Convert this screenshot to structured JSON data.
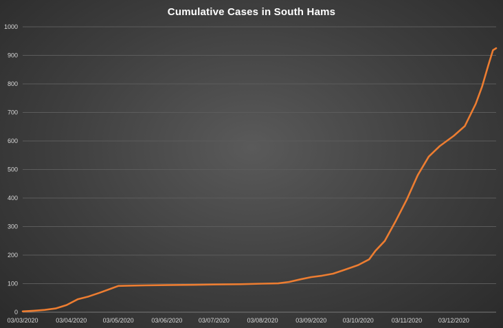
{
  "chart_data": {
    "type": "line",
    "title": "Cumulative Cases in South Hams",
    "xlabel": "",
    "ylabel": "",
    "ylim": [
      0,
      1000
    ],
    "yticks": [
      0,
      100,
      200,
      300,
      400,
      500,
      600,
      700,
      800,
      900,
      1000
    ],
    "xlim": [
      "2020-03-03",
      "2020-12-30"
    ],
    "x_tick_labels": [
      "03/03/2020",
      "03/04/2020",
      "03/05/2020",
      "03/06/2020",
      "03/07/2020",
      "03/08/2020",
      "03/09/2020",
      "03/10/2020",
      "03/11/2020",
      "03/12/2020"
    ],
    "x_tick_dates": [
      "2020-03-03",
      "2020-04-03",
      "2020-05-03",
      "2020-06-03",
      "2020-07-03",
      "2020-08-03",
      "2020-09-03",
      "2020-10-03",
      "2020-11-03",
      "2020-12-03"
    ],
    "grid": true,
    "series": [
      {
        "color": "#ED7D31",
        "points": [
          [
            "2020-03-03",
            3
          ],
          [
            "2020-03-10",
            5
          ],
          [
            "2020-03-17",
            8
          ],
          [
            "2020-03-24",
            13
          ],
          [
            "2020-03-31",
            25
          ],
          [
            "2020-04-07",
            45
          ],
          [
            "2020-04-14",
            55
          ],
          [
            "2020-04-21",
            68
          ],
          [
            "2020-04-28",
            82
          ],
          [
            "2020-05-03",
            92
          ],
          [
            "2020-05-10",
            93
          ],
          [
            "2020-05-20",
            94
          ],
          [
            "2020-06-03",
            95
          ],
          [
            "2020-06-20",
            96
          ],
          [
            "2020-07-03",
            97
          ],
          [
            "2020-07-20",
            98
          ],
          [
            "2020-08-03",
            100
          ],
          [
            "2020-08-13",
            101
          ],
          [
            "2020-08-20",
            106
          ],
          [
            "2020-08-27",
            115
          ],
          [
            "2020-09-03",
            123
          ],
          [
            "2020-09-10",
            128
          ],
          [
            "2020-09-17",
            135
          ],
          [
            "2020-09-24",
            148
          ],
          [
            "2020-10-03",
            165
          ],
          [
            "2020-10-10",
            185
          ],
          [
            "2020-10-14",
            215
          ],
          [
            "2020-10-20",
            250
          ],
          [
            "2020-10-27",
            320
          ],
          [
            "2020-11-03",
            395
          ],
          [
            "2020-11-10",
            480
          ],
          [
            "2020-11-17",
            545
          ],
          [
            "2020-11-24",
            582
          ],
          [
            "2020-12-03",
            618
          ],
          [
            "2020-12-10",
            652
          ],
          [
            "2020-12-17",
            730
          ],
          [
            "2020-12-21",
            790
          ],
          [
            "2020-12-25",
            865
          ],
          [
            "2020-12-28",
            918
          ],
          [
            "2020-12-30",
            925
          ]
        ]
      }
    ]
  }
}
